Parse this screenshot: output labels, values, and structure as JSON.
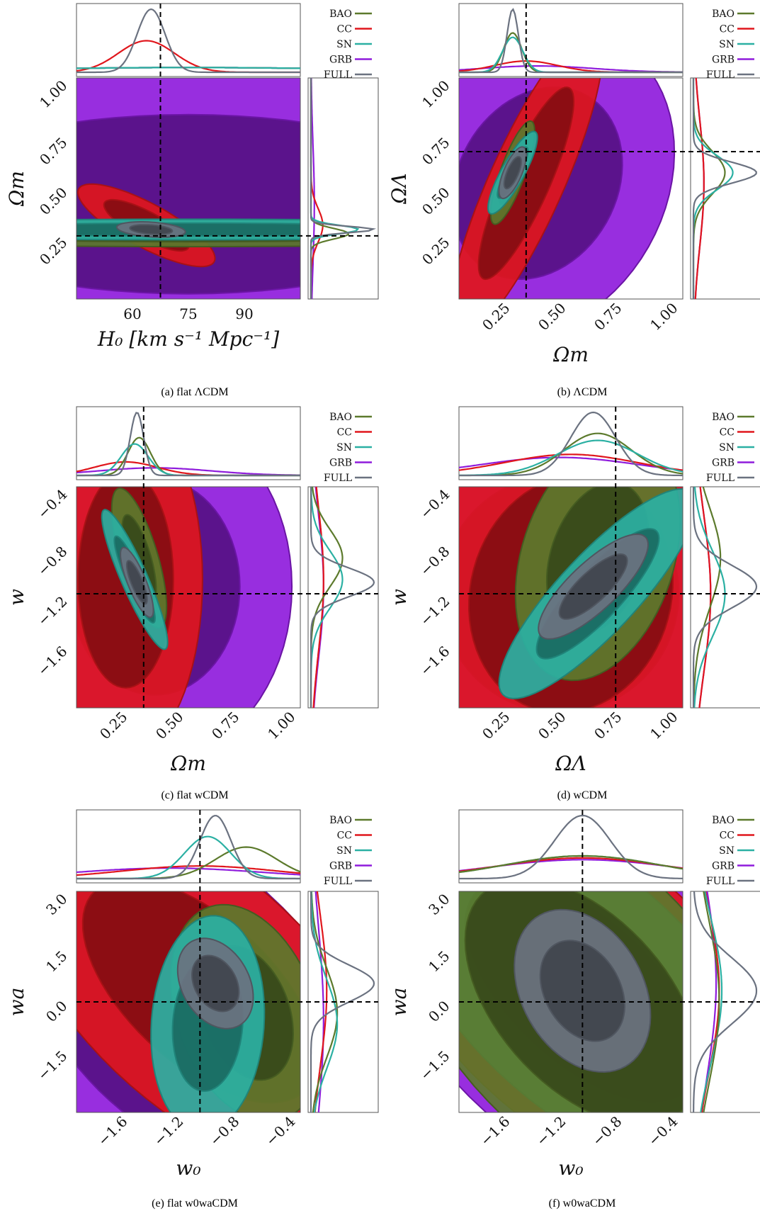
{
  "colors": {
    "BAO": "#5c7a2c",
    "CC": "#e0161c",
    "SN": "#2bb0a3",
    "GRB": "#8f1cdc",
    "FULL": "#6b7280",
    "truth_line": "#000000"
  },
  "legend_labels": [
    "BAO",
    "CC",
    "SN",
    "GRB",
    "FULL"
  ],
  "panels": [
    {
      "caption": "(a) flat ΛCDM",
      "xlabel": "H₀ [km s⁻¹ Mpc⁻¹]",
      "ylabel": "Ωm",
      "xticks": [
        "60",
        "75",
        "90"
      ],
      "yticks": [
        "1.00",
        "0.75",
        "0.50",
        "0.25"
      ],
      "xtick_rotation": 0
    },
    {
      "caption": "(b) ΛCDM",
      "xlabel": "Ωm",
      "ylabel": "ΩΛ",
      "xticks": [
        "0.25",
        "0.50",
        "0.75",
        "1.00"
      ],
      "yticks": [
        "1.00",
        "0.75",
        "0.50",
        "0.25"
      ],
      "xtick_rotation": -45
    },
    {
      "caption": "(c) flat wCDM",
      "xlabel": "Ωm",
      "ylabel": "w",
      "xticks": [
        "0.25",
        "0.50",
        "0.75",
        "1.00"
      ],
      "yticks": [
        "−0.4",
        "−0.8",
        "−1.2",
        "−1.6"
      ],
      "xtick_rotation": -45
    },
    {
      "caption": "(d) wCDM",
      "xlabel": "ΩΛ",
      "ylabel": "w",
      "xticks": [
        "0.25",
        "0.50",
        "0.75",
        "1.00"
      ],
      "yticks": [
        "−0.4",
        "−0.8",
        "−1.2",
        "−1.6"
      ],
      "xtick_rotation": -45
    },
    {
      "caption": "(e) flat w0waCDM",
      "xlabel": "w₀",
      "ylabel": "wa",
      "xticks": [
        "−1.6",
        "−1.2",
        "−0.8",
        "−0.4"
      ],
      "yticks": [
        "3.0",
        "1.5",
        "0.0",
        "−1.5"
      ],
      "xtick_rotation": -45
    },
    {
      "caption": "(f) w0waCDM",
      "xlabel": "w₀",
      "ylabel": "wa",
      "xticks": [
        "−1.6",
        "−1.2",
        "−0.8",
        "−0.4"
      ],
      "yticks": [
        "3.0",
        "1.5",
        "0.0",
        "−1.5"
      ],
      "xtick_rotation": -45
    }
  ],
  "chart_data": [
    {
      "type": "contour",
      "x_param": "H0",
      "y_param": "Omega_m",
      "xlim": [
        52,
        100
      ],
      "ylim": [
        0.0,
        1.05
      ],
      "truth": {
        "x": 70,
        "y": 0.3
      },
      "posteriors": [
        {
          "name": "GRB",
          "cx": 76,
          "cy": 0.45,
          "sx": 40,
          "sy": 0.28,
          "rho": 0.0
        },
        {
          "name": "CC",
          "cx": 67,
          "cy": 0.35,
          "sx": 6,
          "sy": 0.08,
          "rho": -0.8
        },
        {
          "name": "BAO",
          "cx": 76,
          "cy": 0.31,
          "sx": 40,
          "sy": 0.025,
          "rho": 0.0
        },
        {
          "name": "SN",
          "cx": 76,
          "cy": 0.33,
          "sx": 40,
          "sy": 0.02,
          "rho": 0.0
        },
        {
          "name": "FULL",
          "cx": 68,
          "cy": 0.33,
          "sx": 3,
          "sy": 0.015,
          "rho": -0.3
        }
      ]
    },
    {
      "type": "contour",
      "x_param": "Omega_m",
      "y_param": "Omega_Lambda",
      "xlim": [
        0.0,
        1.0
      ],
      "ylim": [
        0.0,
        1.05
      ],
      "truth": {
        "x": 0.3,
        "y": 0.7
      },
      "posteriors": [
        {
          "name": "GRB",
          "cx": 0.35,
          "cy": 0.55,
          "sx": 0.25,
          "sy": 0.3,
          "rho": 0.2
        },
        {
          "name": "CC",
          "cx": 0.3,
          "cy": 0.55,
          "sx": 0.14,
          "sy": 0.3,
          "rho": 0.85
        },
        {
          "name": "BAO",
          "cx": 0.24,
          "cy": 0.6,
          "sx": 0.04,
          "sy": 0.1,
          "rho": 0.8
        },
        {
          "name": "SN",
          "cx": 0.24,
          "cy": 0.6,
          "sx": 0.045,
          "sy": 0.08,
          "rho": 0.85
        },
        {
          "name": "FULL",
          "cx": 0.24,
          "cy": 0.6,
          "sx": 0.025,
          "sy": 0.05,
          "rho": 0.7
        }
      ]
    },
    {
      "type": "contour",
      "x_param": "Omega_m",
      "y_param": "w",
      "xlim": [
        0.0,
        1.0
      ],
      "ylim": [
        -1.8,
        -0.25
      ],
      "truth": {
        "x": 0.3,
        "y": -1.0
      },
      "posteriors": [
        {
          "name": "GRB",
          "cx": 0.35,
          "cy": -0.95,
          "sx": 0.25,
          "sy": 0.5,
          "rho": 0.0
        },
        {
          "name": "CC",
          "cx": 0.22,
          "cy": -0.9,
          "sx": 0.14,
          "sy": 0.5,
          "rho": 0.0
        },
        {
          "name": "BAO",
          "cx": 0.28,
          "cy": -0.75,
          "sx": 0.05,
          "sy": 0.2,
          "rho": -0.7
        },
        {
          "name": "SN",
          "cx": 0.26,
          "cy": -0.9,
          "sx": 0.06,
          "sy": 0.2,
          "rho": -0.9
        },
        {
          "name": "FULL",
          "cx": 0.27,
          "cy": -0.92,
          "sx": 0.03,
          "sy": 0.1,
          "rho": -0.8
        }
      ]
    },
    {
      "type": "contour",
      "x_param": "Omega_Lambda",
      "y_param": "w",
      "xlim": [
        0.0,
        1.0
      ],
      "ylim": [
        -1.8,
        -0.25
      ],
      "truth": {
        "x": 0.7,
        "y": -1.0
      },
      "posteriors": [
        {
          "name": "GRB",
          "cx": 0.45,
          "cy": -1.0,
          "sx": 0.35,
          "sy": 0.55,
          "rho": 0.0
        },
        {
          "name": "CC",
          "cx": 0.5,
          "cy": -1.0,
          "sx": 0.3,
          "sy": 0.55,
          "rho": 0.1
        },
        {
          "name": "BAO",
          "cx": 0.62,
          "cy": -0.75,
          "sx": 0.15,
          "sy": 0.35,
          "rho": 0.3
        },
        {
          "name": "SN",
          "cx": 0.62,
          "cy": -1.0,
          "sx": 0.18,
          "sy": 0.3,
          "rho": 0.85
        },
        {
          "name": "FULL",
          "cx": 0.6,
          "cy": -0.95,
          "sx": 0.1,
          "sy": 0.15,
          "rho": 0.8
        }
      ]
    },
    {
      "type": "contour",
      "x_param": "w0",
      "y_param": "wa",
      "xlim": [
        -1.8,
        -0.35
      ],
      "ylim": [
        -3.0,
        3.0
      ],
      "truth": {
        "x": -1.0,
        "y": 0.0
      },
      "posteriors": [
        {
          "name": "GRB",
          "cx": -1.2,
          "cy": -0.5,
          "sx": 0.6,
          "sy": 2.5,
          "rho": -0.5
        },
        {
          "name": "CC",
          "cx": -1.0,
          "cy": 0.3,
          "sx": 0.5,
          "sy": 2.0,
          "rho": -0.6
        },
        {
          "name": "BAO",
          "cx": -0.7,
          "cy": -0.3,
          "sx": 0.2,
          "sy": 1.2,
          "rho": -0.3
        },
        {
          "name": "SN",
          "cx": -0.95,
          "cy": -0.6,
          "sx": 0.15,
          "sy": 1.2,
          "rho": 0.1
        },
        {
          "name": "FULL",
          "cx": -0.9,
          "cy": 0.5,
          "sx": 0.1,
          "sy": 0.5,
          "rho": -0.3
        }
      ]
    },
    {
      "type": "contour",
      "x_param": "w0",
      "y_param": "wa",
      "xlim": [
        -1.8,
        -0.35
      ],
      "ylim": [
        -3.0,
        3.0
      ],
      "truth": {
        "x": -1.0,
        "y": 0.0
      },
      "posteriors": [
        {
          "name": "GRB",
          "cx": -1.0,
          "cy": 0.5,
          "sx": 0.6,
          "sy": 2.5,
          "rho": -0.5
        },
        {
          "name": "CC",
          "cx": -1.0,
          "cy": 0.3,
          "sx": 0.55,
          "sy": 2.2,
          "rho": -0.55
        },
        {
          "name": "SN",
          "cx": -1.0,
          "cy": 0.3,
          "sx": 0.5,
          "sy": 2.0,
          "rho": -0.6
        },
        {
          "name": "BAO",
          "cx": -1.0,
          "cy": 0.0,
          "sx": 0.5,
          "sy": 2.2,
          "rho": -0.5
        },
        {
          "name": "FULL",
          "cx": -1.0,
          "cy": 0.3,
          "sx": 0.18,
          "sy": 0.9,
          "rho": -0.3
        }
      ]
    }
  ]
}
